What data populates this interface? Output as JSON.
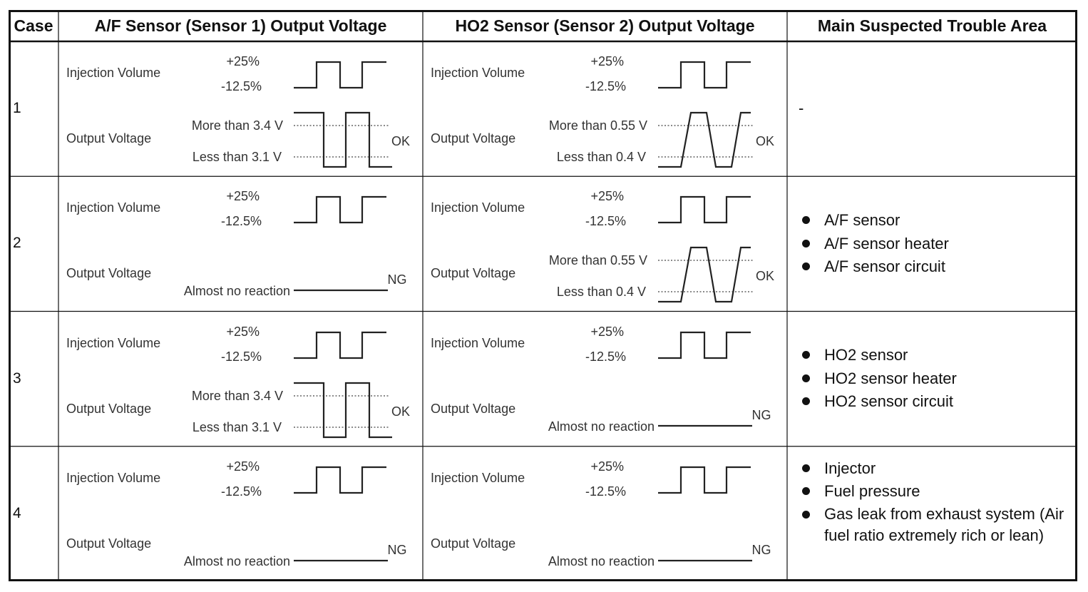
{
  "table": {
    "headers": {
      "case": "Case",
      "af_sensor": "A/F Sensor (Sensor 1) Output Voltage",
      "ho2_sensor": "HO2 Sensor (Sensor 2) Output Voltage",
      "trouble_area": "Main Suspected Trouble Area"
    },
    "rows": [
      {
        "case": "1",
        "af": {
          "injection_label": "Injection Volume",
          "inj_high": "+25%",
          "inj_low": "-12.5%",
          "output_label": "Output Voltage",
          "out_high": "More than 3.4 V",
          "out_low": "Less than 3.1 V",
          "reaction": "",
          "result": "OK"
        },
        "ho2": {
          "injection_label": "Injection Volume",
          "inj_high": "+25%",
          "inj_low": "-12.5%",
          "output_label": "Output Voltage",
          "out_high": "More than 0.55 V",
          "out_low": "Less than 0.4 V",
          "reaction": "",
          "result": "OK"
        },
        "trouble": {
          "dash": "-",
          "items": []
        }
      },
      {
        "case": "2",
        "af": {
          "injection_label": "Injection Volume",
          "inj_high": "+25%",
          "inj_low": "-12.5%",
          "output_label": "Output Voltage",
          "out_high": "",
          "out_low": "",
          "reaction": "Almost no reaction",
          "result": "NG"
        },
        "ho2": {
          "injection_label": "Injection Volume",
          "inj_high": "+25%",
          "inj_low": "-12.5%",
          "output_label": "Output Voltage",
          "out_high": "More than 0.55 V",
          "out_low": "Less than 0.4 V",
          "reaction": "",
          "result": "OK"
        },
        "trouble": {
          "dash": "",
          "items": [
            "A/F sensor",
            "A/F sensor heater",
            "A/F sensor circuit"
          ]
        }
      },
      {
        "case": "3",
        "af": {
          "injection_label": "Injection Volume",
          "inj_high": "+25%",
          "inj_low": "-12.5%",
          "output_label": "Output Voltage",
          "out_high": "More than 3.4 V",
          "out_low": "Less than 3.1 V",
          "reaction": "",
          "result": "OK"
        },
        "ho2": {
          "injection_label": "Injection Volume",
          "inj_high": "+25%",
          "inj_low": "-12.5%",
          "output_label": "Output Voltage",
          "out_high": "",
          "out_low": "",
          "reaction": "Almost no reaction",
          "result": "NG"
        },
        "trouble": {
          "dash": "",
          "items": [
            "HO2 sensor",
            "HO2 sensor heater",
            "HO2 sensor circuit"
          ]
        }
      },
      {
        "case": "4",
        "af": {
          "injection_label": "Injection Volume",
          "inj_high": "+25%",
          "inj_low": "-12.5%",
          "output_label": "Output Voltage",
          "out_high": "",
          "out_low": "",
          "reaction": "Almost no reaction",
          "result": "NG"
        },
        "ho2": {
          "injection_label": "Injection Volume",
          "inj_high": "+25%",
          "inj_low": "-12.5%",
          "output_label": "Output Voltage",
          "out_high": "",
          "out_low": "",
          "reaction": "Almost no reaction",
          "result": "NG"
        },
        "trouble": {
          "dash": "",
          "items": [
            "Injector",
            "Fuel pressure",
            "Gas leak from exhaust system (Air fuel ratio extremely rich or lean)"
          ]
        }
      }
    ]
  }
}
